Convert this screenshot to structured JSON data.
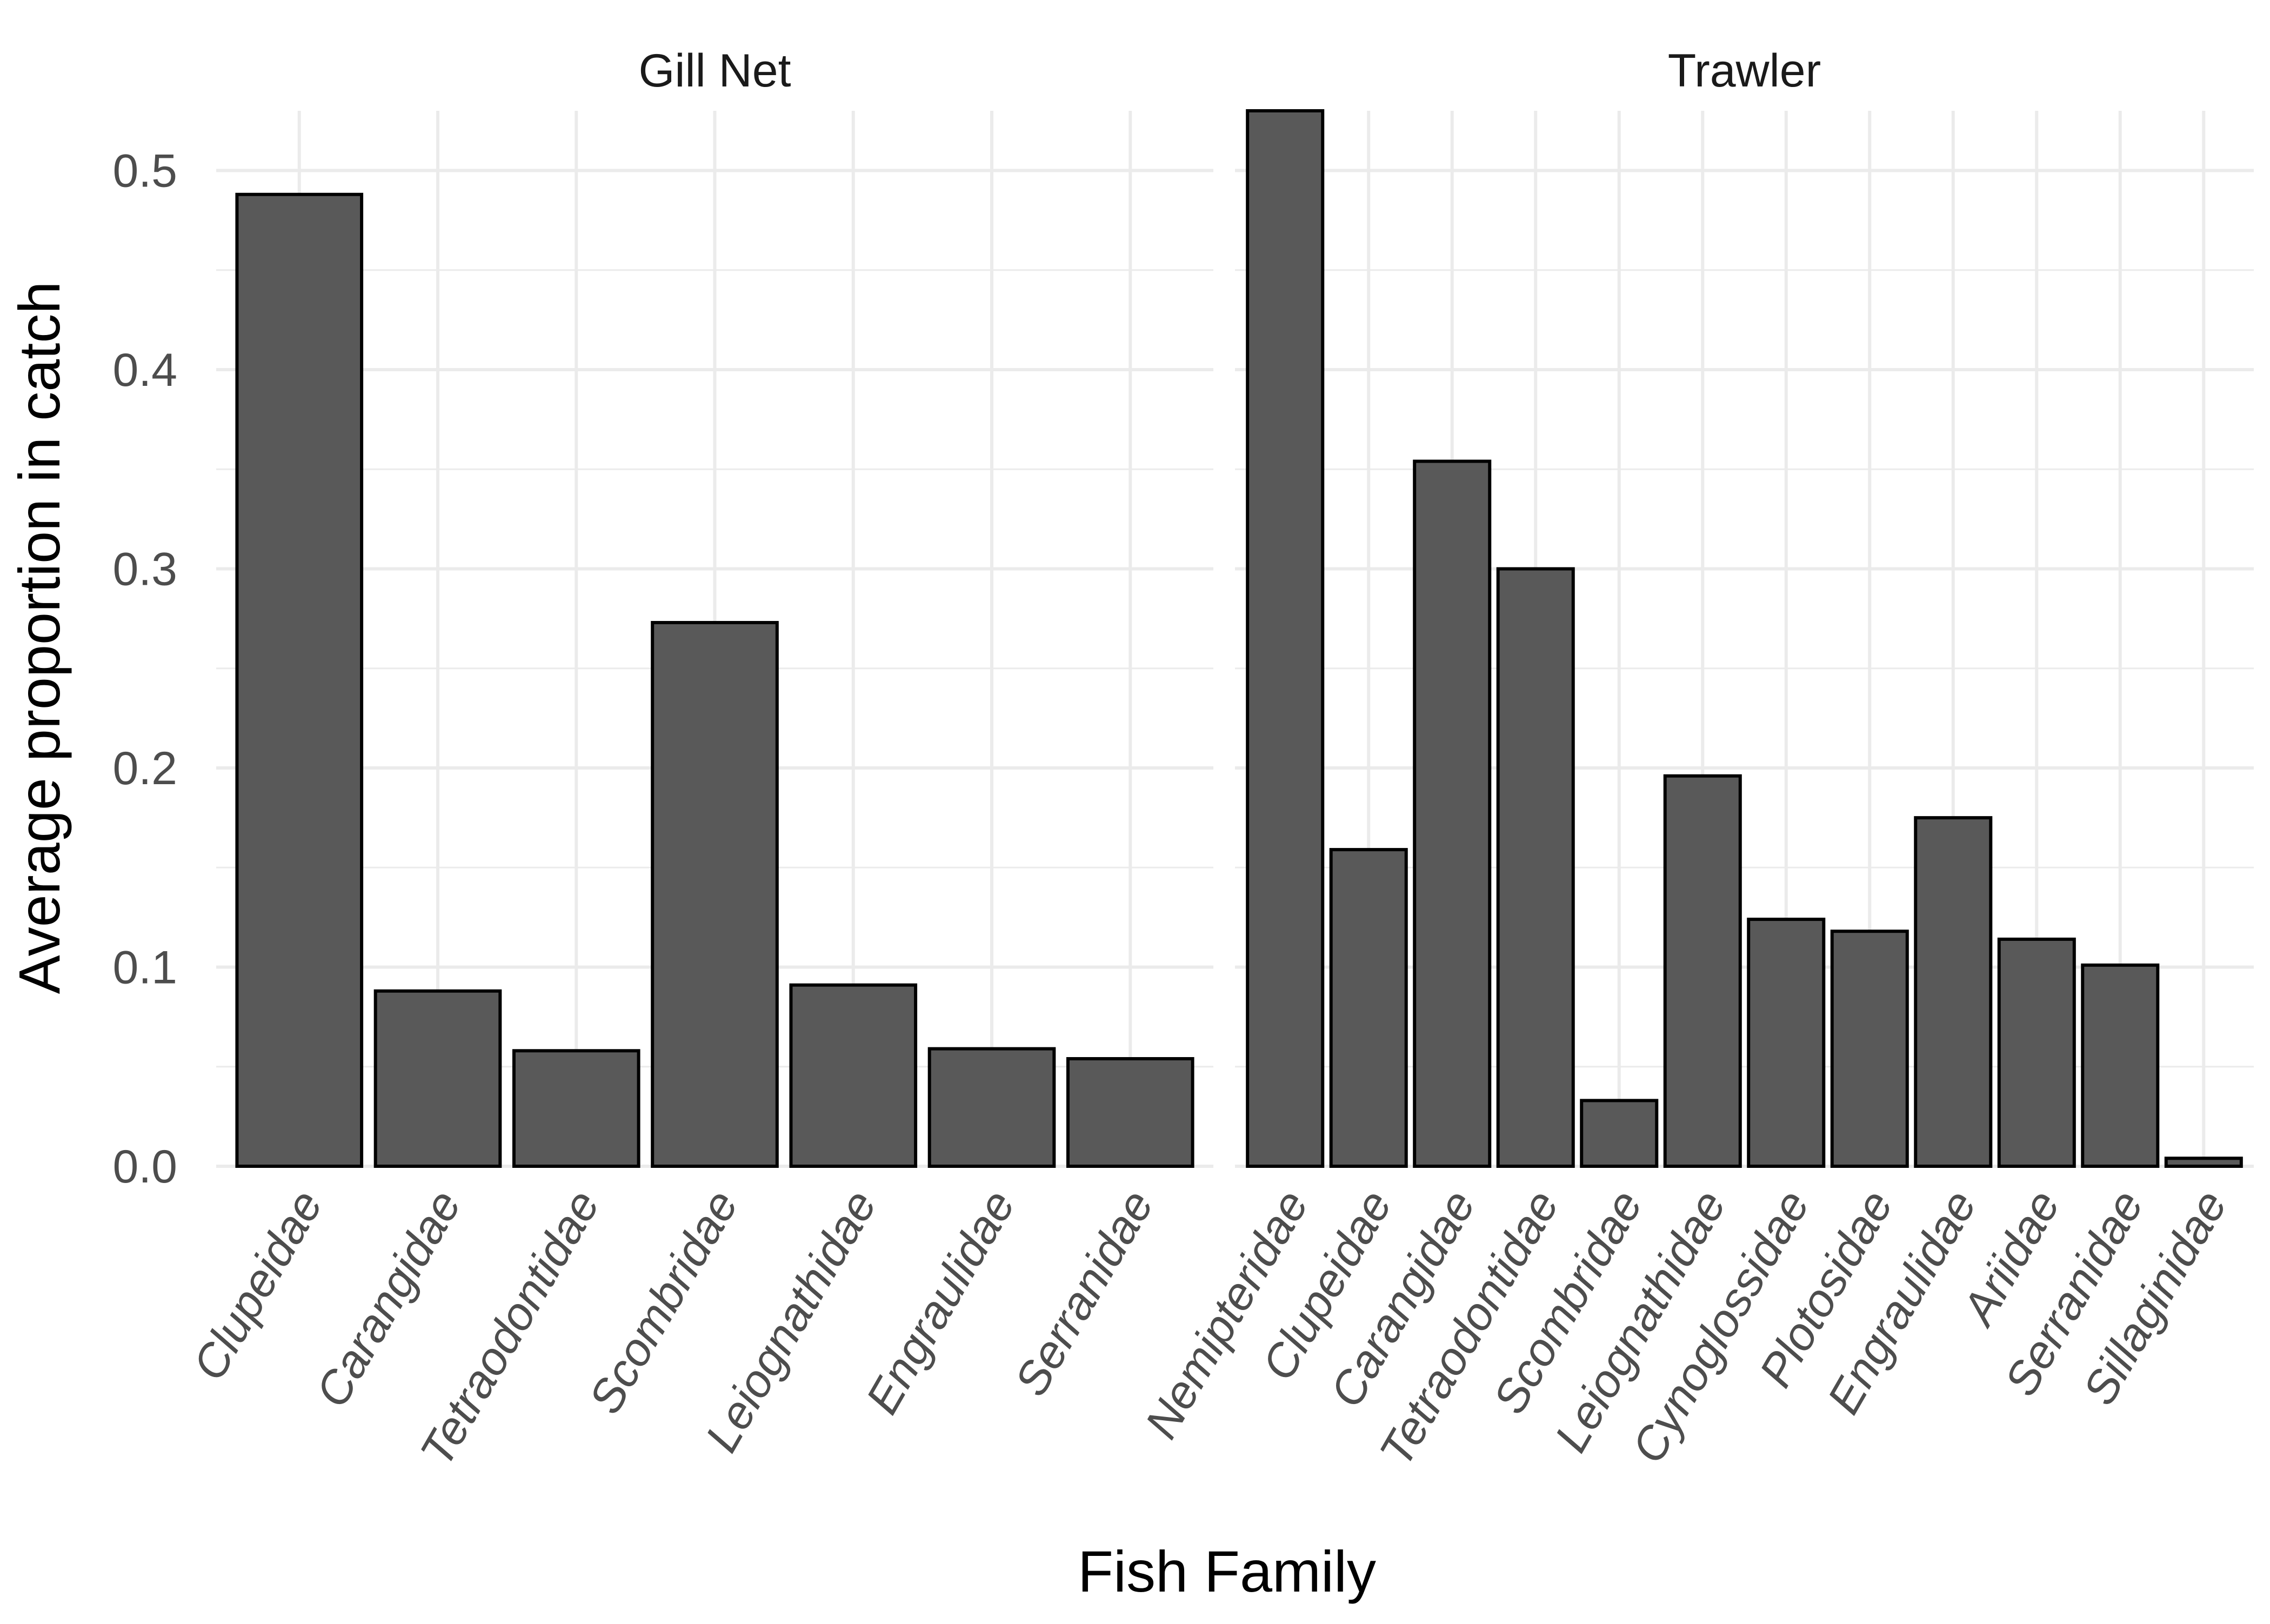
{
  "chart_data": {
    "type": "bar",
    "xlabel": "Fish Family",
    "ylabel": "Average proportion in catch",
    "ylim": [
      0,
      0.53
    ],
    "yticks": [
      "0.0",
      "0.1",
      "0.2",
      "0.3",
      "0.4",
      "0.5"
    ],
    "grid": true,
    "bar_color": "#595959",
    "bar_outline": "#000000",
    "facets": [
      {
        "title": "Gill Net",
        "categories": [
          "Clupeidae",
          "Carangidae",
          "Tetraodontidae",
          "Scombridae",
          "Leiognathidae",
          "Engraulidae",
          "Serranidae"
        ],
        "values": [
          0.488,
          0.088,
          0.058,
          0.273,
          0.091,
          0.059,
          0.054
        ]
      },
      {
        "title": "Trawler",
        "categories": [
          "Nemipteridae",
          "Clupeidae",
          "Carangidae",
          "Tetraodontidae",
          "Scombridae",
          "Leiognathidae",
          "Cynoglossidae",
          "Plotosidae",
          "Engraulidae",
          "Ariidae",
          "Serranidae",
          "Sillaginidae"
        ],
        "values": [
          0.535,
          0.159,
          0.354,
          0.3,
          0.033,
          0.196,
          0.124,
          0.118,
          0.175,
          0.114,
          0.101,
          0.004
        ]
      }
    ]
  }
}
